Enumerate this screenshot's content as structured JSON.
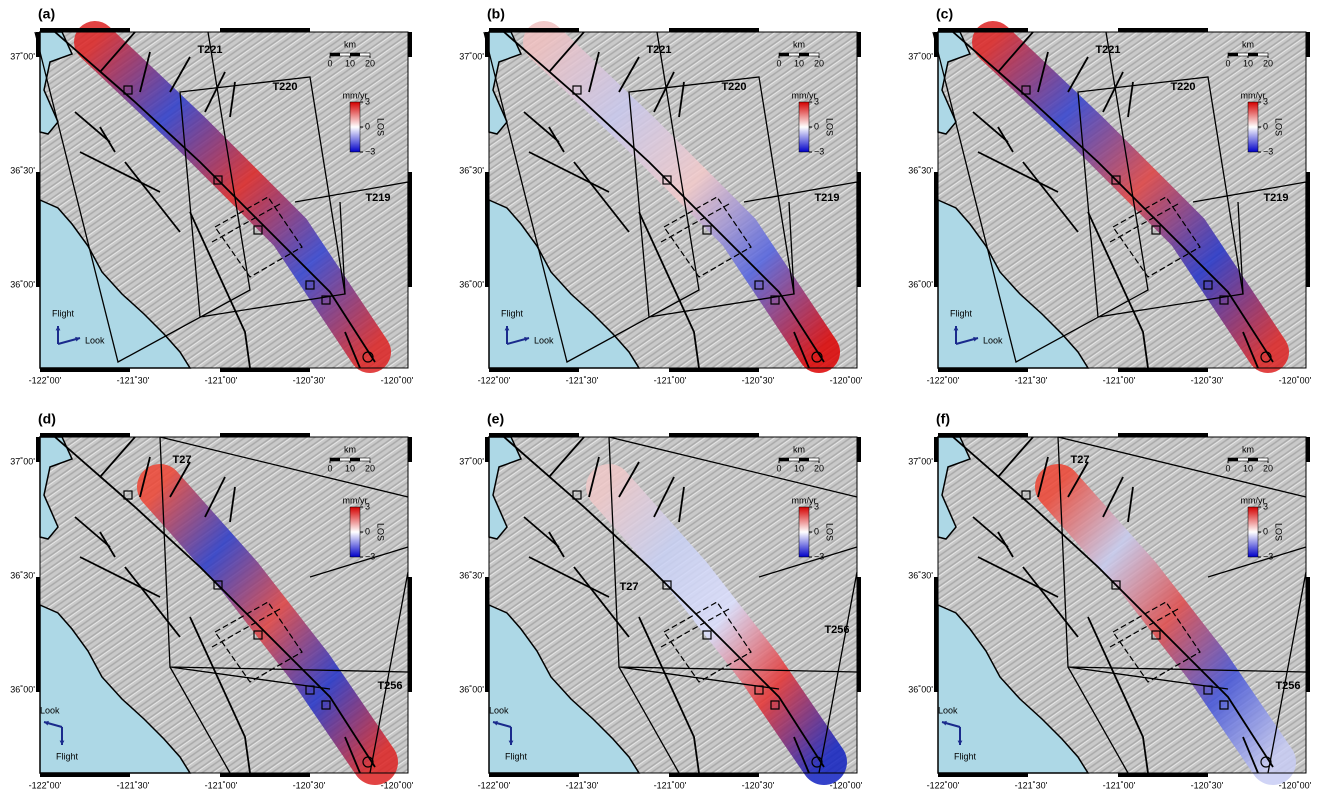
{
  "panels": [
    {
      "label": "(a)",
      "tracks": [
        "T221",
        "T220",
        "T219"
      ]
    },
    {
      "label": "(b)",
      "tracks": [
        "T221",
        "T220",
        "T219"
      ]
    },
    {
      "label": "(c)",
      "tracks": [
        "T221",
        "T220",
        "T219"
      ]
    },
    {
      "label": "(d)",
      "tracks": [
        "T27",
        "T256"
      ]
    },
    {
      "label": "(e)",
      "tracks": [
        "T27",
        "T256"
      ]
    },
    {
      "label": "(f)",
      "tracks": [
        "T27",
        "T256"
      ]
    }
  ],
  "arrows": {
    "flight": "Flight",
    "look": "Look"
  },
  "scale_bar": {
    "title": "km",
    "ticks": [
      0,
      10,
      20
    ]
  },
  "colorbar": {
    "title": "mm/yr",
    "axis_label": "LOS",
    "range": [
      -3,
      3
    ],
    "ticks": [
      3,
      0,
      {
        "value": -3,
        "label": "−3"
      }
    ]
  },
  "lon_ticks": [
    "-122˚00'",
    "-121˚30'",
    "-121˚00'",
    "-120˚30'",
    "-120˚00'"
  ],
  "lat_ticks": [
    "37˚00'",
    "36˚30'",
    "36˚00'"
  ]
}
